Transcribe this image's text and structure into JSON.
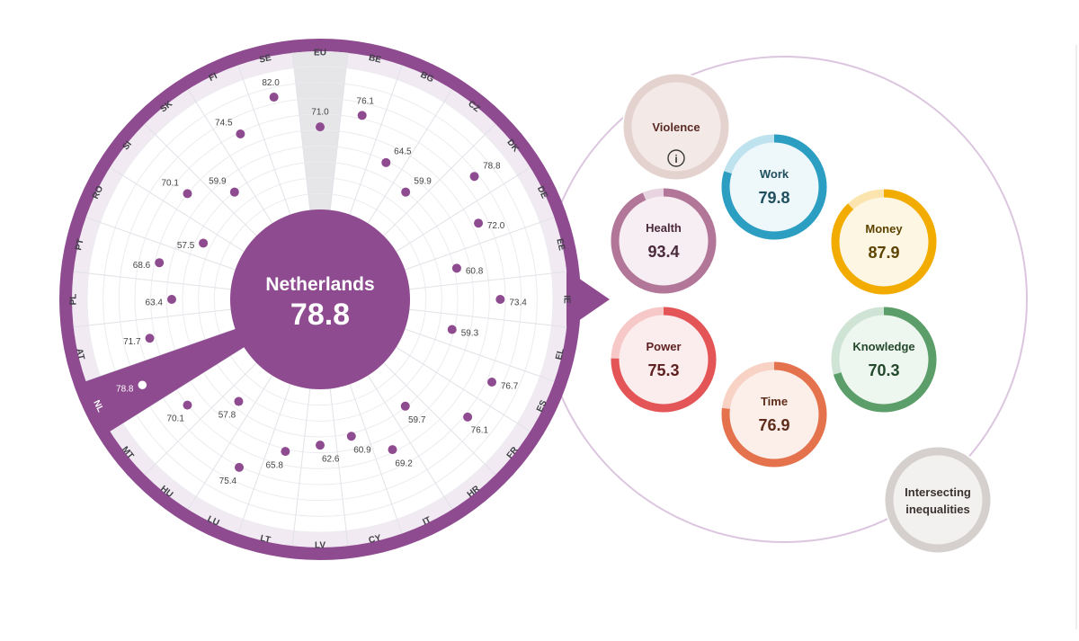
{
  "chart_data": {
    "type": "radial-dot",
    "country": "Netherlands",
    "score": "78.8",
    "highlight": "NL",
    "countries": [
      {
        "code": "EU",
        "value": 71.0
      },
      {
        "code": "BE",
        "value": 76.1
      },
      {
        "code": "BG",
        "value": 64.5
      },
      {
        "code": "CZ",
        "value": 59.9
      },
      {
        "code": "DK",
        "value": 78.8
      },
      {
        "code": "DE",
        "value": 72.0
      },
      {
        "code": "EE",
        "value": 60.8
      },
      {
        "code": "IE",
        "value": 73.4
      },
      {
        "code": "EL",
        "value": 59.3
      },
      {
        "code": "ES",
        "value": 76.7
      },
      {
        "code": "FR",
        "value": 76.1
      },
      {
        "code": "HR",
        "value": 59.7
      },
      {
        "code": "IT",
        "value": 69.2
      },
      {
        "code": "CY",
        "value": 60.9
      },
      {
        "code": "LV",
        "value": 62.6
      },
      {
        "code": "LT",
        "value": 65.8
      },
      {
        "code": "LU",
        "value": 75.4
      },
      {
        "code": "HU",
        "value": 57.8
      },
      {
        "code": "MT",
        "value": 70.1
      },
      {
        "code": "NL",
        "value": 78.8
      },
      {
        "code": "AT",
        "value": 71.7
      },
      {
        "code": "PL",
        "value": 63.4
      },
      {
        "code": "PT",
        "value": 68.6
      },
      {
        "code": "RO",
        "value": 57.5
      },
      {
        "code": "SI",
        "value": 70.1
      },
      {
        "code": "SK",
        "value": 59.9
      },
      {
        "code": "FI",
        "value": 74.5
      },
      {
        "code": "SE",
        "value": 82.0
      }
    ],
    "domains": [
      {
        "name": "Violence",
        "value": null,
        "icon": "info-icon",
        "color": "#c8a8a4",
        "track": "#e4d2cf",
        "fill": "#f3e9e7",
        "text": "#5a2a24"
      },
      {
        "name": "Work",
        "value": 79.8,
        "color": "#2b9ec2",
        "track": "#bfe2ef",
        "fill": "#eef7fa",
        "text": "#1f4f5e"
      },
      {
        "name": "Money",
        "value": 87.9,
        "color": "#f2ac00",
        "track": "#fbe4ad",
        "fill": "#fdf6e3",
        "text": "#5e4300"
      },
      {
        "name": "Health",
        "value": 93.4,
        "color": "#b27699",
        "track": "#e8d4e0",
        "fill": "#f6eef3",
        "text": "#4a2a3b"
      },
      {
        "name": "Knowledge",
        "value": 70.3,
        "color": "#5c9e69",
        "track": "#cfe4d4",
        "fill": "#eef6f0",
        "text": "#24482b"
      },
      {
        "name": "Power",
        "value": 75.3,
        "color": "#e35556",
        "track": "#f6c9c8",
        "fill": "#fbeded",
        "text": "#5e1f20"
      },
      {
        "name": "Time",
        "value": 76.9,
        "color": "#e4734d",
        "track": "#f8d2c4",
        "fill": "#fcefea",
        "text": "#5e2c1a"
      },
      {
        "name": "Intersecting inequalities",
        "value": null,
        "color": "#d5d0cd",
        "track": "#d5d0cd",
        "fill": "#f3f1f0",
        "text": "#3a3330"
      }
    ],
    "colors": {
      "accent": "#8e4b90",
      "ring_light": "#f1eaf2",
      "eu_band": "#e6e6e9",
      "connector_outline": "#dcc6df"
    }
  }
}
